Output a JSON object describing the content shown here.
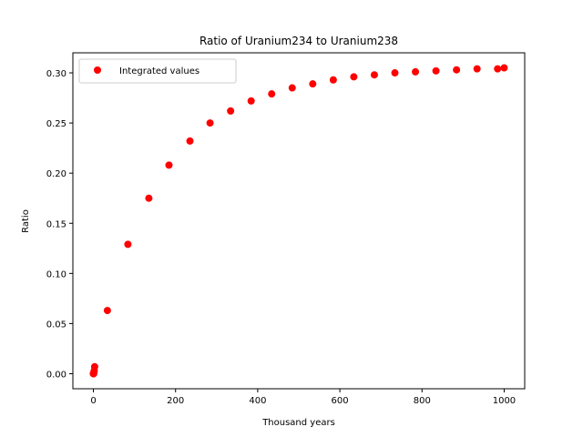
{
  "chart_data": {
    "type": "scatter",
    "title": "Ratio of Uranium234 to Uranium238",
    "xlabel": "Thousand years",
    "ylabel": "Ratio",
    "xlim": [
      -50,
      1050
    ],
    "ylim": [
      -0.015,
      0.32
    ],
    "xticks": [
      0,
      200,
      400,
      600,
      800,
      1000
    ],
    "xtick_labels": [
      "0",
      "200",
      "400",
      "600",
      "800",
      "1000"
    ],
    "yticks": [
      0.0,
      0.05,
      0.1,
      0.15,
      0.2,
      0.25,
      0.3
    ],
    "ytick_labels": [
      "0.00",
      "0.05",
      "0.10",
      "0.15",
      "0.20",
      "0.25",
      "0.30"
    ],
    "grid": false,
    "legend_position": "top-left",
    "series": [
      {
        "name": "Integrated values",
        "color": "#ff0000",
        "marker": "circle",
        "x": [
          0,
          0.1,
          0.3,
          0.6,
          1,
          2,
          3,
          34,
          84,
          135,
          184,
          235,
          284,
          334,
          384,
          434,
          484,
          534,
          584,
          634,
          684,
          734,
          784,
          834,
          884,
          934,
          984,
          1000
        ],
        "y": [
          0.0,
          0.0,
          0.0,
          0.0,
          0.001,
          0.003,
          0.007,
          0.063,
          0.129,
          0.175,
          0.208,
          0.232,
          0.25,
          0.262,
          0.272,
          0.279,
          0.285,
          0.289,
          0.293,
          0.296,
          0.298,
          0.3,
          0.301,
          0.302,
          0.303,
          0.304,
          0.304,
          0.305
        ]
      }
    ]
  }
}
